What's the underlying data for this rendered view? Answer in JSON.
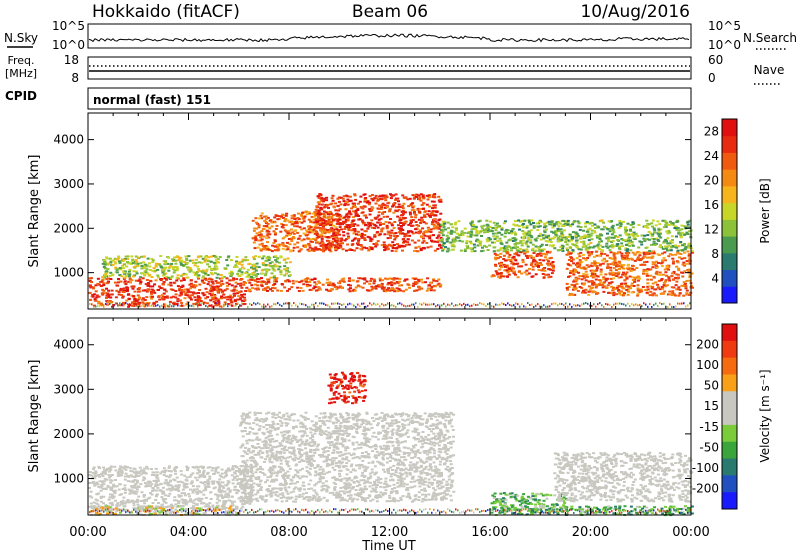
{
  "header": {
    "station": "Hokkaido (fitACF)",
    "beam": "Beam 06",
    "date": "10/Aug/2016"
  },
  "top_panel": {
    "left_label": "N.Sky",
    "right_label": "N.Search",
    "left_ticks": [
      "10^5",
      "10^0"
    ],
    "right_ticks": [
      "10^5",
      "10^0"
    ]
  },
  "freq_panel": {
    "left_label_1": "Freq.",
    "left_label_2": "[MHz]",
    "left_ticks": [
      "18",
      "8"
    ],
    "right_label": "Nave",
    "right_ticks": [
      "60",
      "0"
    ]
  },
  "cpid_panel": {
    "label": "CPID",
    "mode_text": "normal (fast) 151"
  },
  "colors": {
    "power": [
      "#1a1aff",
      "#2050c0",
      "#2a7a70",
      "#4a9a50",
      "#8cc23a",
      "#c8d628",
      "#f7b51d",
      "#f58a13",
      "#f05a10",
      "#e82b10",
      "#e01010"
    ],
    "velocity": [
      "#e01010",
      "#f03a10",
      "#f76b10",
      "#f7a018",
      "#c8c8c0",
      "#c8c8c0",
      "#7acc3a",
      "#3aa53a",
      "#2a7a70",
      "#2050c0",
      "#1a1aff"
    ],
    "power_dominant": "#f05a10",
    "velocity_dominant": "#c8c8c0"
  },
  "chart_data": [
    {
      "type": "heatmap",
      "title": "",
      "xlabel": "",
      "ylabel": "Slant Range [km]",
      "x_ticks": [
        "00:00",
        "04:00",
        "08:00",
        "12:00",
        "16:00",
        "20:00",
        "00:00"
      ],
      "y_ticks": [
        "1000",
        "2000",
        "3000",
        "4000"
      ],
      "xlim_hours": [
        0,
        24
      ],
      "ylim": [
        180,
        4600
      ],
      "colorbar": {
        "label": "Power [dB]",
        "ticks": [
          "4",
          "8",
          "12",
          "16",
          "20",
          "24",
          "28"
        ],
        "range": [
          0,
          30
        ]
      },
      "regions": [
        {
          "t0": 0.0,
          "t1": 6.2,
          "r0": 250,
          "r1": 900,
          "level": 0.85
        },
        {
          "t0": 6.0,
          "t1": 14.0,
          "r0": 600,
          "r1": 900,
          "level": 0.8
        },
        {
          "t0": 6.5,
          "t1": 10.0,
          "r0": 1500,
          "r1": 2400,
          "level": 0.75
        },
        {
          "t0": 9.0,
          "t1": 14.0,
          "r0": 1500,
          "r1": 2800,
          "level": 0.85
        },
        {
          "t0": 16.0,
          "t1": 18.5,
          "r0": 900,
          "r1": 1500,
          "level": 0.8
        },
        {
          "t0": 19.0,
          "t1": 24.0,
          "r0": 500,
          "r1": 1500,
          "level": 0.75
        },
        {
          "t0": 0.5,
          "t1": 8.0,
          "r0": 900,
          "r1": 1400,
          "level": 0.45
        },
        {
          "t0": 14.0,
          "t1": 24.0,
          "r0": 1500,
          "r1": 2200,
          "level": 0.4
        }
      ]
    },
    {
      "type": "heatmap",
      "title": "",
      "xlabel": "Time UT",
      "ylabel": "Slant Range [km]",
      "x_ticks": [
        "00:00",
        "04:00",
        "08:00",
        "12:00",
        "16:00",
        "20:00",
        "00:00"
      ],
      "y_ticks": [
        "1000",
        "2000",
        "3000",
        "4000"
      ],
      "xlim_hours": [
        0,
        24
      ],
      "ylim": [
        180,
        4600
      ],
      "colorbar": {
        "label": "Velocity [m s⁻¹]",
        "ticks": [
          "200",
          "100",
          "50",
          "15",
          "-15",
          "-50",
          "-100",
          "-200"
        ],
        "range": [
          -250,
          250
        ]
      },
      "regions": [
        {
          "t0": 0.0,
          "t1": 6.5,
          "r0": 300,
          "r1": 1300,
          "value": 0
        },
        {
          "t0": 6.0,
          "t1": 14.5,
          "r0": 500,
          "r1": 2500,
          "value": 0
        },
        {
          "t0": 9.5,
          "t1": 11.0,
          "r0": 2700,
          "r1": 3400,
          "value": 220
        },
        {
          "t0": 16.0,
          "t1": 19.0,
          "r0": 300,
          "r1": 700,
          "value": -60
        },
        {
          "t0": 18.5,
          "t1": 24.0,
          "r0": 500,
          "r1": 1600,
          "value": 0
        },
        {
          "t0": 16.0,
          "t1": 24.0,
          "r0": 200,
          "r1": 400,
          "value": -80
        },
        {
          "t0": 0.0,
          "t1": 6.0,
          "r0": 200,
          "r1": 400,
          "value": 20
        }
      ]
    }
  ]
}
